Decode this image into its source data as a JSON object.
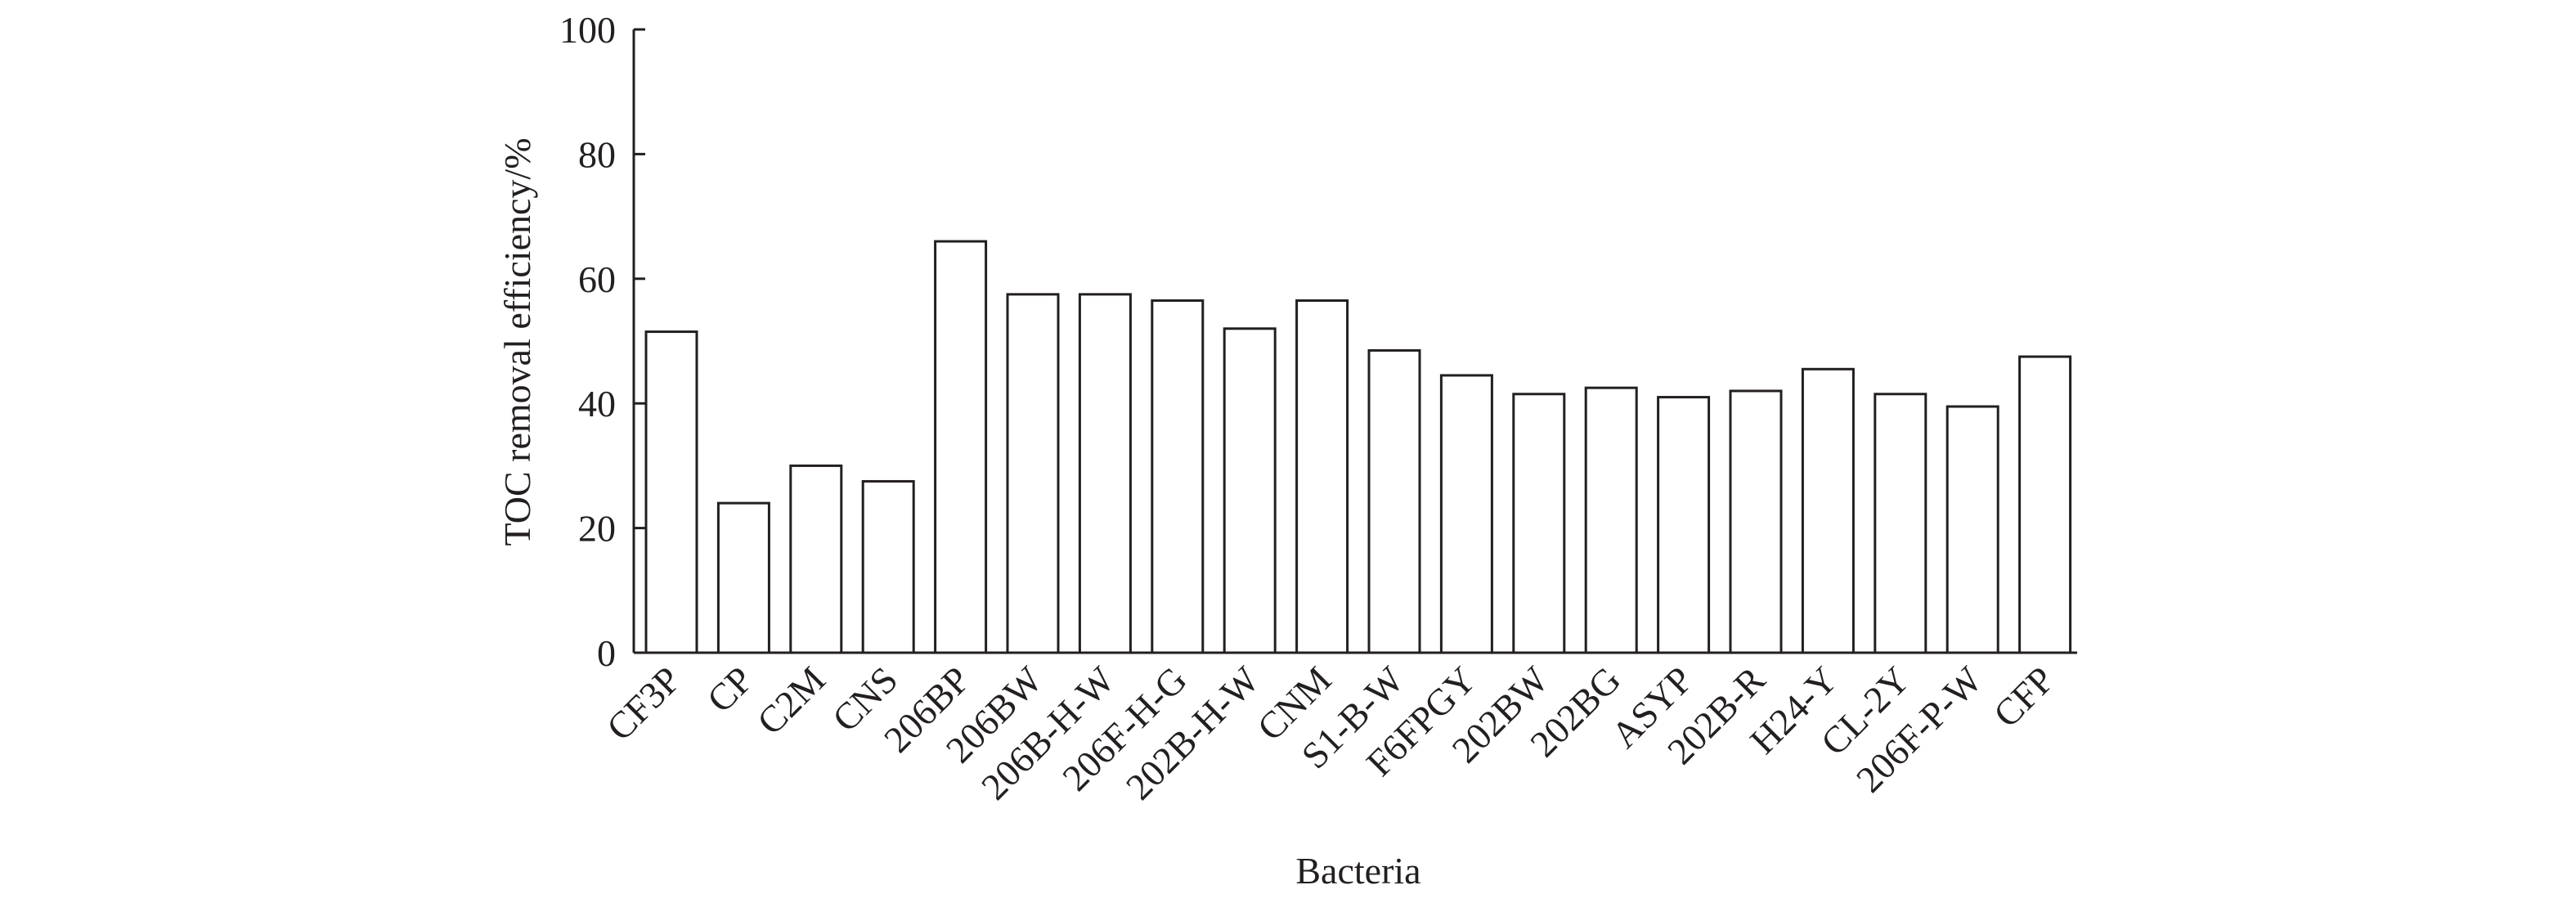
{
  "chart_data": {
    "type": "bar",
    "title": "",
    "xlabel": "Bacteria",
    "ylabel": "TOC removal efficiency/%",
    "ylim": [
      0,
      100
    ],
    "yticks": [
      0,
      20,
      40,
      60,
      80,
      100
    ],
    "ytick_labels": [
      "0",
      "20",
      "40",
      "60",
      "80",
      "100"
    ],
    "grid": false,
    "legend": "none",
    "categories": [
      "CF3P",
      "CP",
      "C2M",
      "CNS",
      "206BP",
      "206BW",
      "206B-H-W",
      "206F-H-G",
      "202B-H-W",
      "CNM",
      "S1-B-W",
      "F6FPGY",
      "202BW",
      "202BG",
      "ASYP",
      "202B-R",
      "H24-Y",
      "CL-2Y",
      "206F-P-W",
      "CFP"
    ],
    "values": [
      51.5,
      24,
      30,
      27.5,
      66,
      57.5,
      57.5,
      56.5,
      52,
      56.5,
      48.5,
      44.5,
      41.5,
      42.5,
      41,
      42,
      45.5,
      41.5,
      39.5,
      47.5
    ],
    "colors": {
      "bar_fill": "#ffffff",
      "bar_stroke": "#231f20",
      "axis": "#231f20",
      "text": "#231f20"
    }
  }
}
